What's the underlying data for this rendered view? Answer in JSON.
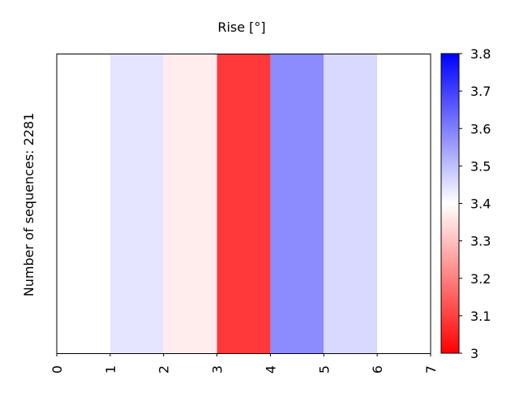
{
  "chart_data": {
    "type": "heatmap",
    "title": "Rise [°]",
    "ylabel": "Number of sequences: 2281",
    "xlabel": "",
    "x_tick_labels": [
      "0",
      "1",
      "2",
      "3",
      "4",
      "5",
      "6",
      "7"
    ],
    "x_range": [
      0,
      7
    ],
    "cells": [
      {
        "x_start": 0,
        "x_end": 1,
        "value": 3.4
      },
      {
        "x_start": 1,
        "x_end": 2,
        "value": 3.44
      },
      {
        "x_start": 2,
        "x_end": 3,
        "value": 3.37
      },
      {
        "x_start": 3,
        "x_end": 4,
        "value": 3.09
      },
      {
        "x_start": 4,
        "x_end": 5,
        "value": 3.58
      },
      {
        "x_start": 5,
        "x_end": 6,
        "value": 3.46
      },
      {
        "x_start": 6,
        "x_end": 7,
        "value": 3.4
      }
    ],
    "colorbar": {
      "min": 3.0,
      "max": 3.8,
      "center": 3.4,
      "ticks": [
        "3",
        "3.1",
        "3.2",
        "3.3",
        "3.4",
        "3.5",
        "3.6",
        "3.7",
        "3.8"
      ],
      "low_color": "#ff0000",
      "mid_color": "#ffffff",
      "high_color": "#0000ff"
    },
    "grid": false
  }
}
